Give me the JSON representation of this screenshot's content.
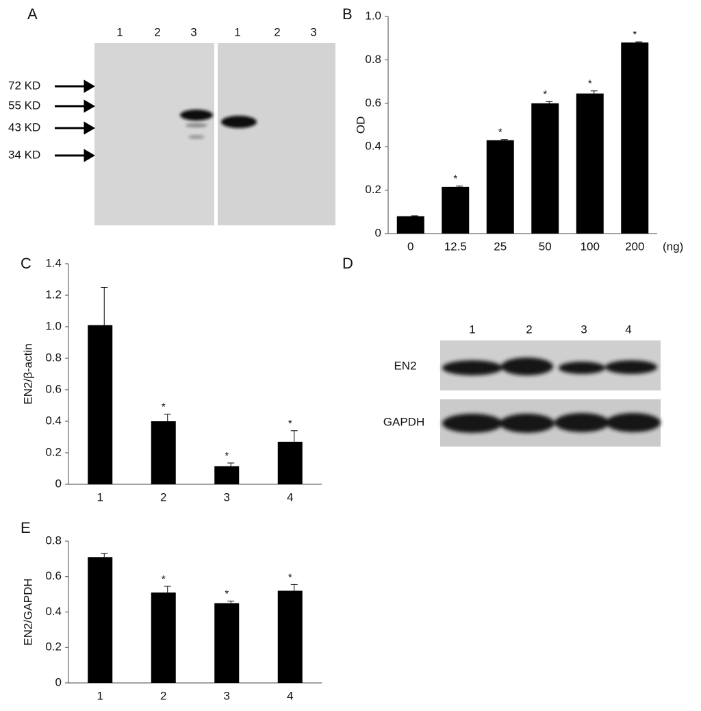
{
  "panel_letters": {
    "a": "A",
    "b": "B",
    "c": "C",
    "d": "D",
    "e": "E"
  },
  "blot_a": {
    "lanes_left": [
      "1",
      "2",
      "3"
    ],
    "lanes_right": [
      "1",
      "2",
      "3"
    ],
    "markers": [
      "72 KD",
      "55 KD",
      "43 KD",
      "34 KD"
    ]
  },
  "blot_d": {
    "lanes": [
      "1",
      "2",
      "3",
      "4"
    ],
    "rows": [
      "EN2",
      "GAPDH"
    ]
  },
  "chart_data": [
    {
      "type": "bar",
      "y_label": "OD",
      "x_unit_label": "(ng)",
      "categories": [
        "0",
        "12.5",
        "25",
        "50",
        "100",
        "200"
      ],
      "values": [
        0.08,
        0.215,
        0.43,
        0.6,
        0.645,
        0.88
      ],
      "errors": [
        0.002,
        0.004,
        0.003,
        0.008,
        0.012,
        0.003
      ],
      "annotations": [
        null,
        "*",
        "*",
        "*",
        "*",
        "*"
      ],
      "color": "#000000",
      "ylim": [
        0,
        1
      ],
      "yticks": [
        0,
        0.2,
        0.4,
        0.6,
        0.8,
        {
          "value": 1,
          "label": "1.0"
        }
      ]
    },
    {
      "type": "bar",
      "y_label": "EN2/β-actin",
      "categories": [
        "1",
        "2",
        "3",
        "4"
      ],
      "values": [
        1.01,
        0.4,
        0.115,
        0.27
      ],
      "errors": [
        0.24,
        0.045,
        0.02,
        0.07
      ],
      "annotations": [
        null,
        "*",
        "*",
        "*"
      ],
      "color": "#000000",
      "ylim": [
        0,
        1.4
      ],
      "yticks": [
        0,
        0.2,
        0.4,
        0.6,
        0.8,
        {
          "value": 1,
          "label": "1.0"
        },
        1.2,
        1.4
      ]
    },
    {
      "type": "bar",
      "y_label": "EN2/GAPDH",
      "categories": [
        "1",
        "2",
        "3",
        "4"
      ],
      "values": [
        0.71,
        0.51,
        0.45,
        0.52
      ],
      "errors": [
        0.02,
        0.035,
        0.012,
        0.035
      ],
      "annotations": [
        null,
        "*",
        "*",
        "*"
      ],
      "color": "#000000",
      "ylim": [
        0,
        0.8
      ],
      "yticks": [
        0,
        0.2,
        0.4,
        0.6,
        0.8
      ]
    }
  ]
}
